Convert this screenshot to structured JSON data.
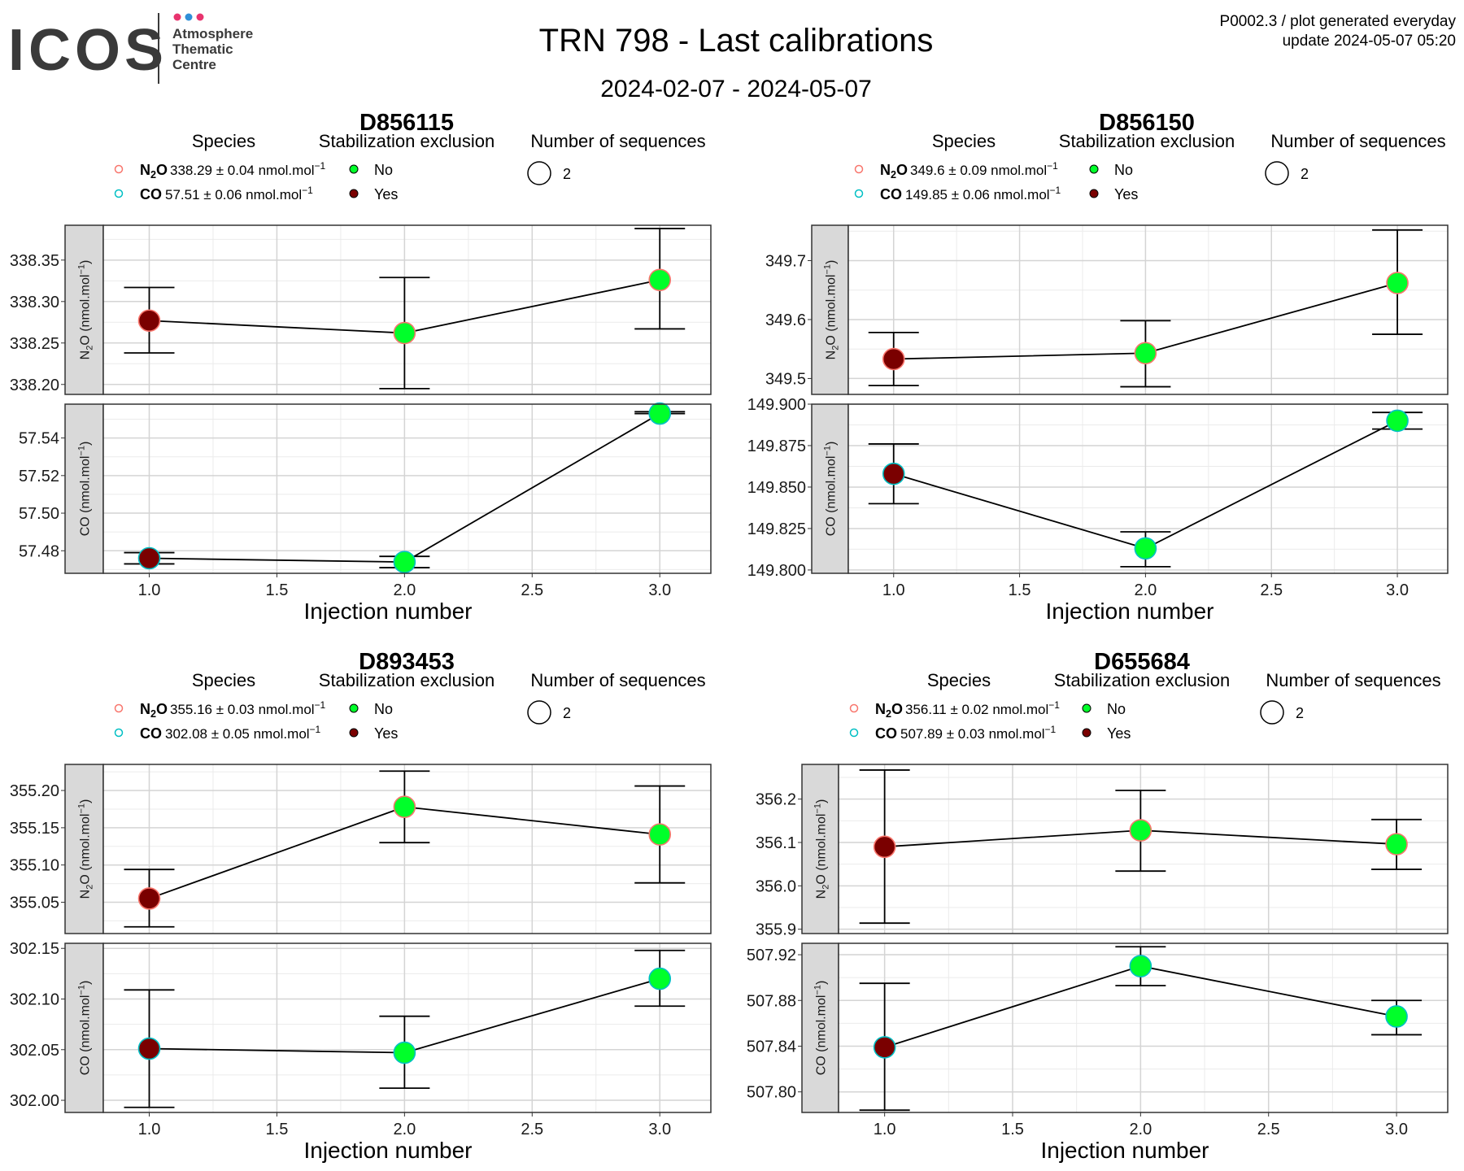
{
  "header": {
    "logo_text": "ICOS",
    "logo_subtitle": [
      "Atmosphere",
      "Thematic",
      "Centre"
    ],
    "logo_dot_colors": [
      "#e8336e",
      "#2f8fd8",
      "#e8336e"
    ],
    "title": "TRN 798 - Last calibrations",
    "date_range": "2024-02-07 - 2024-05-07",
    "meta_line1": "P0002.3 / plot generated everyday",
    "meta_line2": "update  2024-05-07 05:20"
  },
  "legend_titles": {
    "species": "Species",
    "stabilization": "Stabilization exclusion",
    "sequences": "Number of sequences",
    "no": "No",
    "yes": "Yes",
    "seq_value": "2"
  },
  "colors": {
    "included": "#00ff2a",
    "excluded": "#7a0000",
    "n2o_outline": "#f8766d",
    "co_outline": "#00bfc4",
    "panel_strip": "#d9d9d9"
  },
  "chart_data": [
    {
      "type": "scatter",
      "title": "D856115",
      "xlabel": "Injection number",
      "xlim": [
        0.82,
        3.2
      ],
      "x_ticks": [
        "1.0",
        "1.5",
        "2.0",
        "2.5",
        "3.0"
      ],
      "legend": [
        {
          "species": "N2O",
          "value": "338.29 ± 0.04 nmol.mol",
          "sup": "−1"
        },
        {
          "species": "CO",
          "value": "57.51 ± 0.06 nmol.mol",
          "sup": "−1"
        }
      ],
      "facets": [
        {
          "species": "N2O",
          "ylabel": "N2O (nmol.mol-1)",
          "ylim": [
            338.188,
            338.392
          ],
          "y_ticks": [
            "338.20",
            "338.25",
            "338.30",
            "338.35"
          ],
          "x": [
            1,
            2,
            3
          ],
          "y": [
            338.277,
            338.262,
            338.326
          ],
          "err_low": [
            338.238,
            338.195,
            338.267
          ],
          "err_high": [
            338.317,
            338.329,
            338.388
          ],
          "excluded": [
            true,
            false,
            false
          ]
        },
        {
          "species": "CO",
          "ylabel": "CO (nmol.mol-1)",
          "ylim": [
            57.468,
            57.558
          ],
          "y_ticks": [
            "57.48",
            "57.50",
            "57.52",
            "57.54"
          ],
          "x": [
            1,
            2,
            3
          ],
          "y": [
            57.476,
            57.474,
            57.553
          ],
          "err_low": [
            57.473,
            57.471,
            57.553
          ],
          "err_high": [
            57.479,
            57.477,
            57.554
          ],
          "excluded": [
            true,
            false,
            false
          ]
        }
      ]
    },
    {
      "type": "scatter",
      "title": "D856150",
      "xlabel": "Injection number",
      "xlim": [
        0.82,
        3.2
      ],
      "x_ticks": [
        "1.0",
        "1.5",
        "2.0",
        "2.5",
        "3.0"
      ],
      "legend": [
        {
          "species": "N2O",
          "value": "349.6 ± 0.09 nmol.mol",
          "sup": "−1"
        },
        {
          "species": "CO",
          "value": "149.85 ± 0.06 nmol.mol",
          "sup": "−1"
        }
      ],
      "facets": [
        {
          "species": "N2O",
          "ylabel": "N2O (nmol.mol-1)",
          "ylim": [
            349.473,
            349.76
          ],
          "y_ticks": [
            "349.5",
            "349.6",
            "349.7"
          ],
          "x": [
            1,
            2,
            3
          ],
          "y": [
            349.533,
            349.543,
            349.662
          ],
          "err_low": [
            349.488,
            349.486,
            349.575
          ],
          "err_high": [
            349.578,
            349.598,
            349.752
          ],
          "excluded": [
            true,
            false,
            false
          ]
        },
        {
          "species": "CO",
          "ylabel": "CO (nmol.mol-1)",
          "ylim": [
            149.798,
            149.9
          ],
          "y_ticks": [
            "149.800",
            "149.825",
            "149.850",
            "149.875",
            "149.900"
          ],
          "x": [
            1,
            2,
            3
          ],
          "y": [
            149.858,
            149.813,
            149.89
          ],
          "err_low": [
            149.84,
            149.802,
            149.885
          ],
          "err_high": [
            149.876,
            149.823,
            149.895
          ],
          "excluded": [
            true,
            false,
            false
          ]
        }
      ]
    },
    {
      "type": "scatter",
      "title": "D893453",
      "xlabel": "Injection number",
      "xlim": [
        0.82,
        3.2
      ],
      "x_ticks": [
        "1.0",
        "1.5",
        "2.0",
        "2.5",
        "3.0"
      ],
      "legend": [
        {
          "species": "N2O",
          "value": "355.16 ± 0.03 nmol.mol",
          "sup": "−1"
        },
        {
          "species": "CO",
          "value": "302.08 ± 0.05 nmol.mol",
          "sup": "−1"
        }
      ],
      "facets": [
        {
          "species": "N2O",
          "ylabel": "N2O (nmol.mol-1)",
          "ylim": [
            355.008,
            355.235
          ],
          "y_ticks": [
            "355.05",
            "355.10",
            "355.15",
            "355.20"
          ],
          "x": [
            1,
            2,
            3
          ],
          "y": [
            355.055,
            355.178,
            355.141
          ],
          "err_low": [
            355.017,
            355.13,
            355.076
          ],
          "err_high": [
            355.094,
            355.226,
            355.206
          ],
          "excluded": [
            true,
            false,
            false
          ]
        },
        {
          "species": "CO",
          "ylabel": "CO (nmol.mol-1)",
          "ylim": [
            301.988,
            302.155
          ],
          "y_ticks": [
            "302.00",
            "302.05",
            "302.10",
            "302.15"
          ],
          "x": [
            1,
            2,
            3
          ],
          "y": [
            302.051,
            302.047,
            302.12
          ],
          "err_low": [
            301.993,
            302.012,
            302.093
          ],
          "err_high": [
            302.109,
            302.083,
            302.148
          ],
          "excluded": [
            true,
            false,
            false
          ]
        }
      ]
    },
    {
      "type": "scatter",
      "title": "D655684",
      "xlabel": "Injection number",
      "xlim": [
        0.82,
        3.2
      ],
      "x_ticks": [
        "1.0",
        "1.5",
        "2.0",
        "2.5",
        "3.0"
      ],
      "legend": [
        {
          "species": "N2O",
          "value": "356.11 ± 0.02 nmol.mol",
          "sup": "−1"
        },
        {
          "species": "CO",
          "value": "507.89 ± 0.03 nmol.mol",
          "sup": "−1"
        }
      ],
      "facets": [
        {
          "species": "N2O",
          "ylabel": "N2O (nmol.mol-1)",
          "ylim": [
            355.89,
            356.28
          ],
          "y_ticks": [
            "355.9",
            "356.0",
            "356.1",
            "356.2"
          ],
          "x": [
            1,
            2,
            3
          ],
          "y": [
            356.09,
            356.128,
            356.096
          ],
          "err_low": [
            355.914,
            356.034,
            356.038
          ],
          "err_high": [
            356.267,
            356.22,
            356.153
          ],
          "excluded": [
            true,
            false,
            false
          ]
        },
        {
          "species": "CO",
          "ylabel": "CO (nmol.mol-1)",
          "ylim": [
            507.782,
            507.93
          ],
          "y_ticks": [
            "507.80",
            "507.84",
            "507.88",
            "507.92"
          ],
          "x": [
            1,
            2,
            3
          ],
          "y": [
            507.839,
            507.91,
            507.866
          ],
          "err_low": [
            507.784,
            507.893,
            507.85
          ],
          "err_high": [
            507.895,
            507.927,
            507.88
          ],
          "excluded": [
            true,
            false,
            false
          ]
        }
      ]
    }
  ]
}
